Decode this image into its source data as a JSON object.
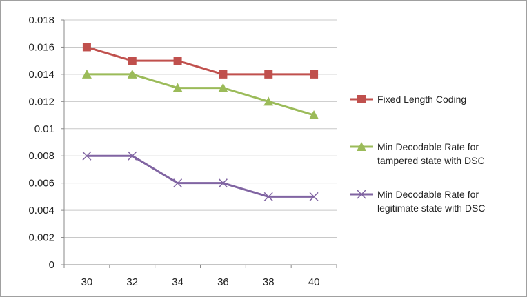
{
  "chart_data": {
    "type": "line",
    "title": "",
    "xlabel": "",
    "ylabel": "",
    "x": [
      30,
      32,
      34,
      36,
      38,
      40
    ],
    "ylim": [
      0,
      0.018
    ],
    "y_ticks": [
      "0",
      "0.002",
      "0.004",
      "0.006",
      "0.008",
      "0.01",
      "0.012",
      "0.014",
      "0.016",
      "0.018"
    ],
    "x_ticks": [
      "30",
      "32",
      "34",
      "36",
      "38",
      "40"
    ],
    "grid": "horizontal-major",
    "legend_position": "right",
    "series": [
      {
        "name": "Fixed Length Coding",
        "values": [
          0.016,
          0.015,
          0.015,
          0.014,
          0.014,
          0.014
        ],
        "color": "#c0504d",
        "marker": "square",
        "legend_lines": [
          "Fixed Length Coding"
        ]
      },
      {
        "name": "Min Decodable Rate for tampered state with DSC",
        "values": [
          0.014,
          0.014,
          0.013,
          0.013,
          0.012,
          0.011
        ],
        "color": "#9bbb59",
        "marker": "triangle",
        "legend_lines": [
          "Min Decodable Rate for",
          "tampered state with DSC"
        ]
      },
      {
        "name": "Min Decodable Rate for legitimate state with DSC",
        "values": [
          0.008,
          0.008,
          0.006,
          0.006,
          0.005,
          0.005
        ],
        "color": "#8064a2",
        "marker": "x",
        "legend_lines": [
          "Min Decodable Rate for",
          "legitimate state with DSC"
        ]
      }
    ]
  }
}
